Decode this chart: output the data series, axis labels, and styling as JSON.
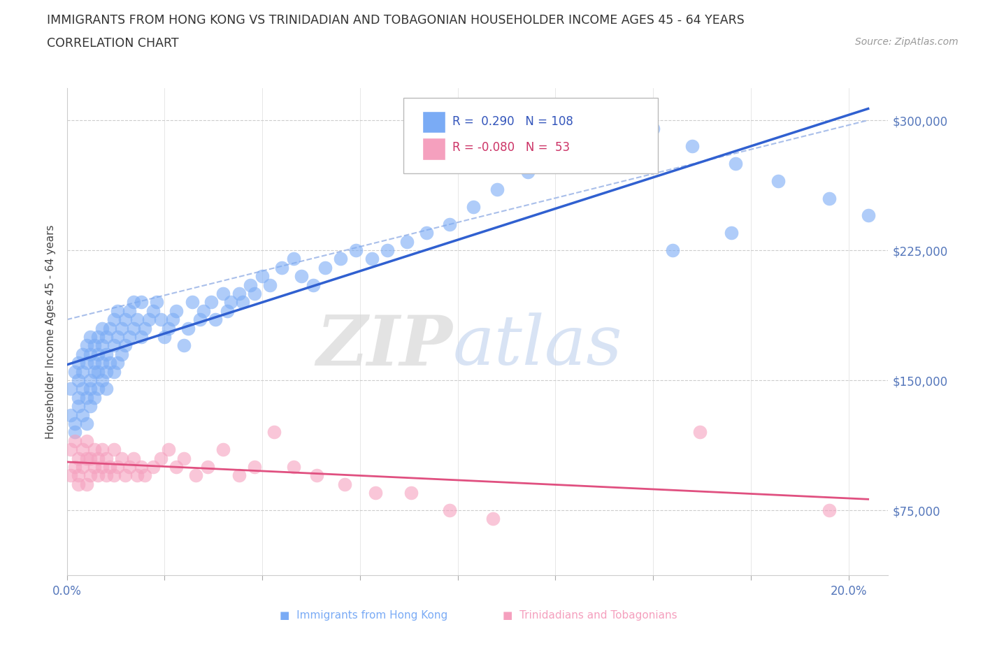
{
  "title_line1": "IMMIGRANTS FROM HONG KONG VS TRINIDADIAN AND TOBAGONIAN HOUSEHOLDER INCOME AGES 45 - 64 YEARS",
  "title_line2": "CORRELATION CHART",
  "source_text": "Source: ZipAtlas.com",
  "watermark_text": "ZIPatlas",
  "ylabel": "Householder Income Ages 45 - 64 years",
  "xlim": [
    0.0,
    0.21
  ],
  "ylim": [
    37500,
    318750
  ],
  "ytick_values": [
    75000,
    150000,
    225000,
    300000
  ],
  "ytick_labels": [
    "$75,000",
    "$150,000",
    "$225,000",
    "$300,000"
  ],
  "hk_color": "#7aabf5",
  "tt_color": "#f5a0be",
  "hk_line_color": "#3060d0",
  "tt_line_color": "#e05080",
  "dash_color": "#a0b8e8",
  "hk_R": 0.29,
  "hk_N": 108,
  "tt_R": -0.08,
  "tt_N": 53,
  "grid_color": "#cccccc",
  "hk_seed": 42,
  "tt_seed": 99,
  "hk_scatter_x": [
    0.001,
    0.001,
    0.002,
    0.002,
    0.002,
    0.003,
    0.003,
    0.003,
    0.003,
    0.004,
    0.004,
    0.004,
    0.004,
    0.005,
    0.005,
    0.005,
    0.005,
    0.006,
    0.006,
    0.006,
    0.006,
    0.006,
    0.007,
    0.007,
    0.007,
    0.007,
    0.008,
    0.008,
    0.008,
    0.008,
    0.009,
    0.009,
    0.009,
    0.009,
    0.01,
    0.01,
    0.01,
    0.01,
    0.011,
    0.011,
    0.012,
    0.012,
    0.012,
    0.013,
    0.013,
    0.013,
    0.014,
    0.014,
    0.015,
    0.015,
    0.016,
    0.016,
    0.017,
    0.017,
    0.018,
    0.019,
    0.019,
    0.02,
    0.021,
    0.022,
    0.023,
    0.024,
    0.025,
    0.026,
    0.027,
    0.028,
    0.03,
    0.031,
    0.032,
    0.034,
    0.035,
    0.037,
    0.038,
    0.04,
    0.041,
    0.042,
    0.044,
    0.045,
    0.047,
    0.048,
    0.05,
    0.052,
    0.055,
    0.058,
    0.06,
    0.063,
    0.066,
    0.07,
    0.074,
    0.078,
    0.082,
    0.087,
    0.092,
    0.098,
    0.104,
    0.11,
    0.118,
    0.125,
    0.133,
    0.141,
    0.15,
    0.16,
    0.171,
    0.182,
    0.195,
    0.205,
    0.17,
    0.155
  ],
  "hk_scatter_y": [
    130000,
    145000,
    120000,
    155000,
    125000,
    140000,
    160000,
    135000,
    150000,
    145000,
    165000,
    130000,
    155000,
    140000,
    160000,
    125000,
    170000,
    145000,
    135000,
    165000,
    150000,
    175000,
    140000,
    160000,
    155000,
    170000,
    145000,
    165000,
    155000,
    175000,
    150000,
    170000,
    160000,
    180000,
    145000,
    165000,
    155000,
    175000,
    160000,
    180000,
    155000,
    170000,
    185000,
    160000,
    175000,
    190000,
    165000,
    180000,
    170000,
    185000,
    175000,
    190000,
    180000,
    195000,
    185000,
    175000,
    195000,
    180000,
    185000,
    190000,
    195000,
    185000,
    175000,
    180000,
    185000,
    190000,
    170000,
    180000,
    195000,
    185000,
    190000,
    195000,
    185000,
    200000,
    190000,
    195000,
    200000,
    195000,
    205000,
    200000,
    210000,
    205000,
    215000,
    220000,
    210000,
    205000,
    215000,
    220000,
    225000,
    220000,
    225000,
    230000,
    235000,
    240000,
    250000,
    260000,
    270000,
    280000,
    290000,
    300000,
    295000,
    285000,
    275000,
    265000,
    255000,
    245000,
    235000,
    225000
  ],
  "tt_scatter_x": [
    0.001,
    0.001,
    0.002,
    0.002,
    0.003,
    0.003,
    0.003,
    0.004,
    0.004,
    0.005,
    0.005,
    0.005,
    0.006,
    0.006,
    0.007,
    0.007,
    0.008,
    0.008,
    0.009,
    0.009,
    0.01,
    0.01,
    0.011,
    0.012,
    0.012,
    0.013,
    0.014,
    0.015,
    0.016,
    0.017,
    0.018,
    0.019,
    0.02,
    0.022,
    0.024,
    0.026,
    0.028,
    0.03,
    0.033,
    0.036,
    0.04,
    0.044,
    0.048,
    0.053,
    0.058,
    0.064,
    0.071,
    0.079,
    0.088,
    0.098,
    0.109,
    0.162,
    0.195
  ],
  "tt_scatter_y": [
    110000,
    95000,
    100000,
    115000,
    90000,
    105000,
    95000,
    100000,
    110000,
    90000,
    105000,
    115000,
    95000,
    105000,
    100000,
    110000,
    95000,
    105000,
    100000,
    110000,
    95000,
    105000,
    100000,
    110000,
    95000,
    100000,
    105000,
    95000,
    100000,
    105000,
    95000,
    100000,
    95000,
    100000,
    105000,
    110000,
    100000,
    105000,
    95000,
    100000,
    110000,
    95000,
    100000,
    120000,
    100000,
    95000,
    90000,
    85000,
    85000,
    75000,
    70000,
    120000,
    75000
  ]
}
